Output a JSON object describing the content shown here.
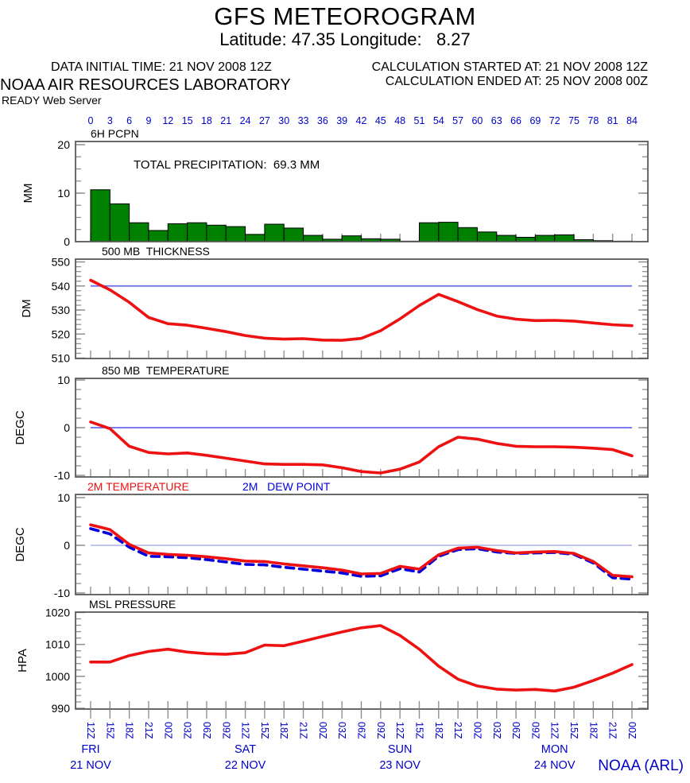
{
  "header": {
    "title": "GFS METEOROGRAM",
    "subtitle": "Latitude: 47.35 Longitude:   8.27",
    "data_initial_time": "DATA INITIAL TIME: 21 NOV 2008 12Z",
    "calc_started": "CALCULATION STARTED AT: 21 NOV 2008 12Z",
    "organization": "NOAA AIR RESOURCES LABORATORY",
    "calc_ended": "CALCULATION ENDED AT: 25 NOV 2008 00Z",
    "server": "READY Web Server"
  },
  "footer": {
    "credit": "NOAA (ARL)"
  },
  "colors": {
    "axis_text_blue": "#0000cc",
    "curve_red": "#ee1111",
    "dew_blue": "#0000dd",
    "ref_blue": "#6469ee",
    "ref_light_blue": "#b9bdee",
    "bar_green": "#008000",
    "frame_gray": "#5a5a5a",
    "tick_gray": "#909090"
  },
  "time_axis": {
    "hours": [
      0,
      3,
      6,
      9,
      12,
      15,
      18,
      21,
      24,
      27,
      30,
      33,
      36,
      39,
      42,
      45,
      48,
      51,
      54,
      57,
      60,
      63,
      66,
      69,
      72,
      75,
      78,
      81,
      84
    ],
    "time_labels": [
      "12Z",
      "15Z",
      "18Z",
      "21Z",
      "00Z",
      "03Z",
      "06Z",
      "09Z",
      "12Z",
      "15Z",
      "18Z",
      "21Z",
      "00Z",
      "03Z",
      "06Z",
      "09Z",
      "12Z",
      "15Z",
      "18Z",
      "21Z",
      "00Z",
      "03Z",
      "06Z",
      "09Z",
      "12Z",
      "15Z",
      "18Z",
      "21Z",
      "00Z"
    ],
    "days": [
      {
        "name": "FRI",
        "date": "21 NOV",
        "hour": 0
      },
      {
        "name": "SAT",
        "date": "22 NOV",
        "hour": 24
      },
      {
        "name": "SUN",
        "date": "23 NOV",
        "hour": 48
      },
      {
        "name": "MON",
        "date": "24 NOV",
        "hour": 72
      }
    ]
  },
  "chart_data": [
    {
      "id": "6h-pcpn",
      "type": "bar",
      "title": "6H PCPN",
      "annotation": "TOTAL PRECIPITATION:  69.3 MM",
      "total_precip_mm": 69.3,
      "ylabel": "MM",
      "ylim": [
        0,
        20
      ],
      "yticks": [
        0,
        10,
        20
      ],
      "minor_step": 2.5,
      "bar_color": "#008000",
      "bar_width_hours": 3,
      "values": [
        10.7,
        7.8,
        3.9,
        2.3,
        3.7,
        3.9,
        3.4,
        3.1,
        1.5,
        3.6,
        2.8,
        1.3,
        0.5,
        1.2,
        0.6,
        0.5,
        0.1,
        3.9,
        4.0,
        2.9,
        2.0,
        1.3,
        0.9,
        1.3,
        1.4,
        0.4,
        0.2,
        0.1
      ]
    },
    {
      "id": "500mb-thickness",
      "type": "line",
      "title": "500 MB  THICKNESS",
      "ylabel": "DM",
      "ylim": [
        510,
        550
      ],
      "yticks": [
        510,
        520,
        530,
        540,
        550
      ],
      "minor_step": 2,
      "ref_line": 540,
      "ref_color": "#6469ee",
      "line_color": "#ee1111",
      "values": [
        542.4,
        538.4,
        533.2,
        526.9,
        524.3,
        523.7,
        522.4,
        521.0,
        519.4,
        518.3,
        517.9,
        518.1,
        517.5,
        517.4,
        518.2,
        521.4,
        526.3,
        531.9,
        536.5,
        533.5,
        530.2,
        527.5,
        526.2,
        525.6,
        525.7,
        525.4,
        524.6,
        523.9,
        523.5
      ]
    },
    {
      "id": "850mb-temperature",
      "type": "line",
      "title": "850 MB  TEMPERATURE",
      "ylabel": "DEGC",
      "ylim": [
        -10,
        10
      ],
      "yticks": [
        -10,
        0,
        10
      ],
      "minor_step": 2,
      "ref_line": 0,
      "ref_color": "#6469ee",
      "line_color": "#ee1111",
      "values": [
        1.2,
        -0.2,
        -3.9,
        -5.2,
        -5.5,
        -5.3,
        -5.8,
        -6.4,
        -7.0,
        -7.6,
        -7.7,
        -7.7,
        -7.8,
        -8.4,
        -9.2,
        -9.5,
        -8.7,
        -7.2,
        -4.0,
        -2.0,
        -2.4,
        -3.3,
        -3.9,
        -4.0,
        -4.0,
        -4.1,
        -4.3,
        -4.6,
        -5.9
      ]
    },
    {
      "id": "2m-temp-dewpoint",
      "type": "line",
      "ylabel": "DEGC",
      "ylim": [
        -10,
        10
      ],
      "yticks": [
        -10,
        0,
        10
      ],
      "minor_step": 2,
      "ref_line": 0,
      "ref_color": "#b9bdee",
      "series": [
        {
          "name": "2M TEMPERATURE",
          "color": "#ee1111",
          "style": "solid",
          "values": [
            4.3,
            3.3,
            0.2,
            -1.6,
            -1.9,
            -2.1,
            -2.4,
            -2.8,
            -3.3,
            -3.4,
            -3.9,
            -4.3,
            -4.7,
            -5.2,
            -6.0,
            -5.9,
            -4.4,
            -5.0,
            -2.0,
            -0.6,
            -0.4,
            -1.1,
            -1.6,
            -1.4,
            -1.3,
            -1.7,
            -3.4,
            -6.3,
            -6.6
          ]
        },
        {
          "name": "2M   DEW POINT",
          "color": "#0000dd",
          "style": "dashed",
          "values": [
            3.5,
            2.4,
            -0.4,
            -2.3,
            -2.4,
            -2.6,
            -3.0,
            -3.5,
            -4.0,
            -4.1,
            -4.6,
            -5.0,
            -5.4,
            -5.8,
            -6.5,
            -6.4,
            -4.9,
            -5.6,
            -2.3,
            -0.9,
            -0.7,
            -1.4,
            -1.7,
            -1.6,
            -1.5,
            -1.9,
            -3.7,
            -6.8,
            -7.1
          ]
        }
      ]
    },
    {
      "id": "msl-pressure",
      "type": "line",
      "title": "MSL PRESSURE",
      "ylabel": "HPA",
      "ylim": [
        990,
        1020
      ],
      "yticks": [
        990,
        1000,
        1010,
        1020
      ],
      "minor_step": 2,
      "line_color": "#ee1111",
      "values": [
        1004.5,
        1004.5,
        1006.5,
        1007.8,
        1008.5,
        1007.6,
        1007.1,
        1006.9,
        1007.4,
        1009.8,
        1009.6,
        1011.0,
        1012.5,
        1013.9,
        1015.2,
        1015.9,
        1012.8,
        1008.5,
        1003.2,
        999.1,
        997.0,
        996.0,
        995.7,
        995.9,
        995.4,
        996.6,
        998.7,
        1001.0,
        1003.7
      ]
    }
  ]
}
